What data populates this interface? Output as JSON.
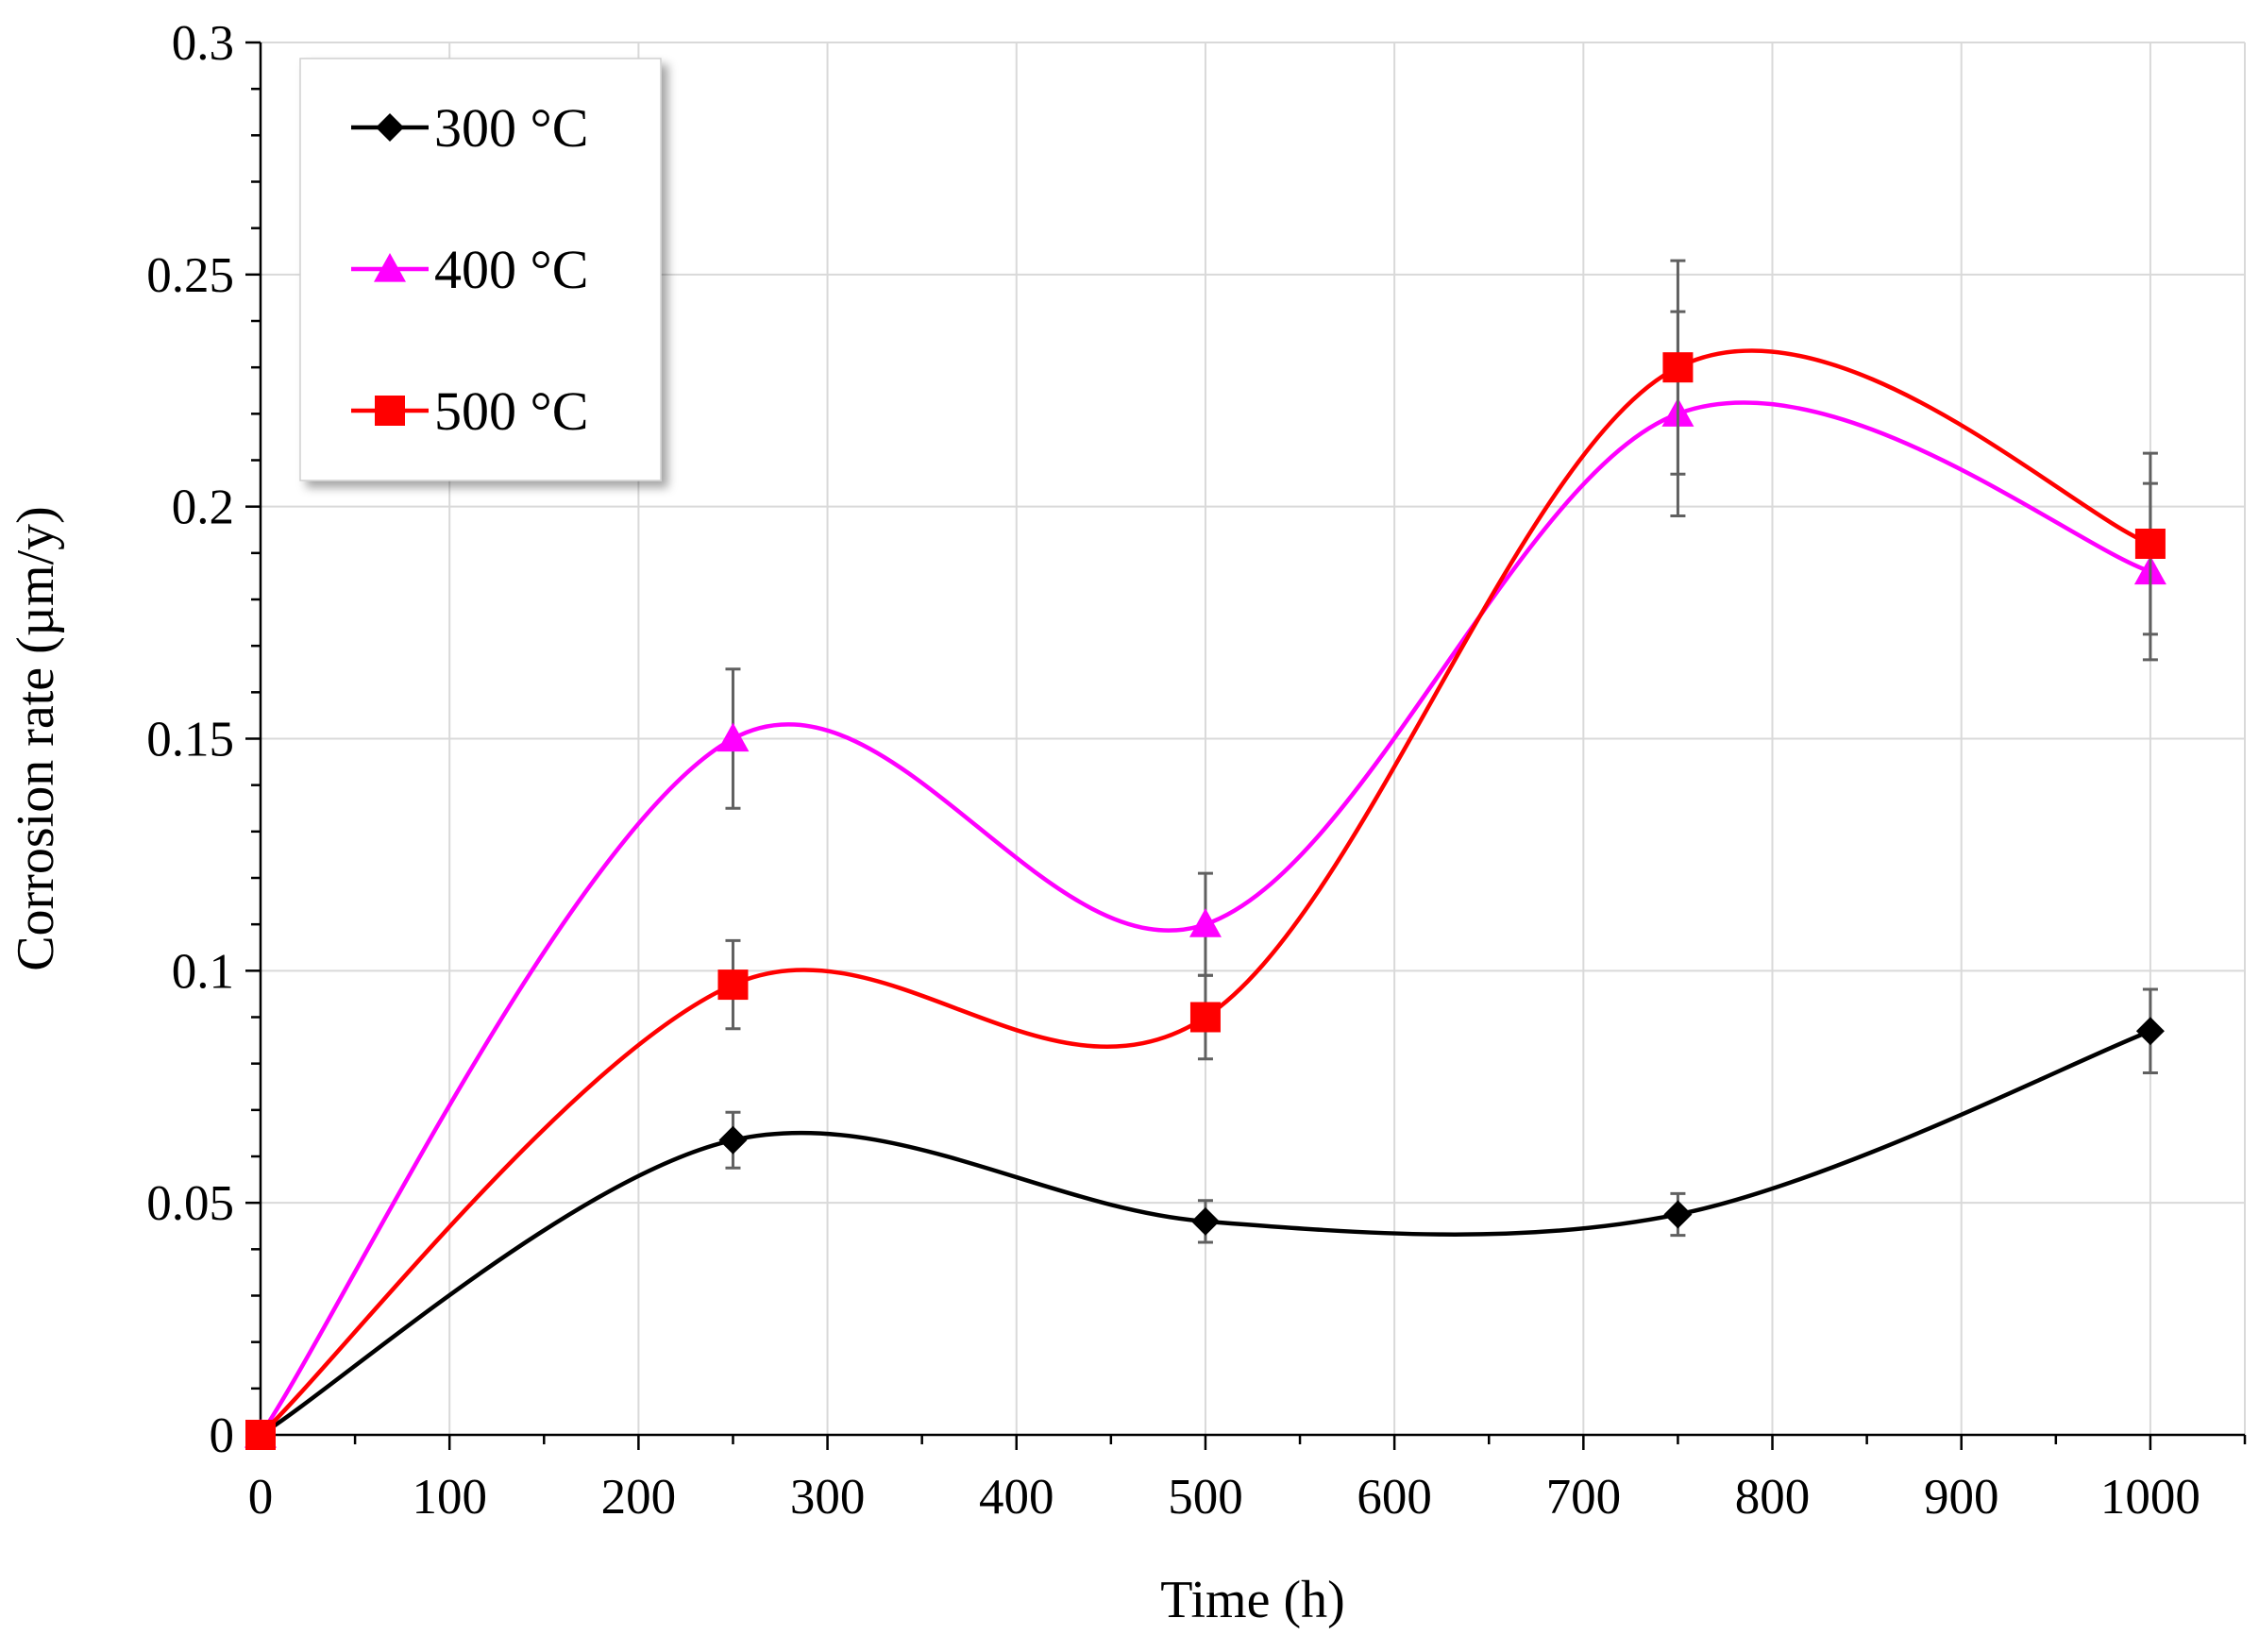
{
  "chart_data": {
    "type": "line",
    "title": "",
    "xlabel": "Time (h)",
    "ylabel": "Corrosion rate (µm/y)",
    "xlim": [
      0,
      1050
    ],
    "ylim": [
      0,
      0.3
    ],
    "x_ticks": [
      0,
      100,
      200,
      300,
      400,
      500,
      600,
      700,
      800,
      900,
      1000
    ],
    "x_tick_labels": [
      "0",
      "100",
      "200",
      "300",
      "400",
      "500",
      "600",
      "700",
      "800",
      "900",
      "1000"
    ],
    "y_ticks": [
      0,
      0.05,
      0.1,
      0.15,
      0.2,
      0.25,
      0.3
    ],
    "y_tick_labels": [
      "0",
      "0.05",
      "0.1",
      "0.15",
      "0.2",
      "0.25",
      "0.3"
    ],
    "grid": true,
    "smooth": true,
    "legend_position": "top-left",
    "x": [
      0,
      250,
      500,
      750,
      1000
    ],
    "series": [
      {
        "name": "300 °C",
        "color": "#000000",
        "marker": "diamond",
        "values": [
          0,
          0.0635,
          0.046,
          0.0475,
          0.087
        ],
        "errors": [
          0,
          0.006,
          0.0045,
          0.0045,
          0.009
        ]
      },
      {
        "name": "400 °C",
        "color": "#ff00ff",
        "marker": "triangle",
        "values": [
          0,
          0.15,
          0.11,
          0.22,
          0.186
        ],
        "errors": [
          0,
          0.015,
          0.011,
          0.022,
          0.019
        ]
      },
      {
        "name": "500 °C",
        "color": "#ff0000",
        "marker": "square",
        "values": [
          0,
          0.097,
          0.09,
          0.23,
          0.192
        ],
        "errors": [
          0,
          0.0095,
          0.009,
          0.023,
          0.0195
        ]
      }
    ]
  }
}
